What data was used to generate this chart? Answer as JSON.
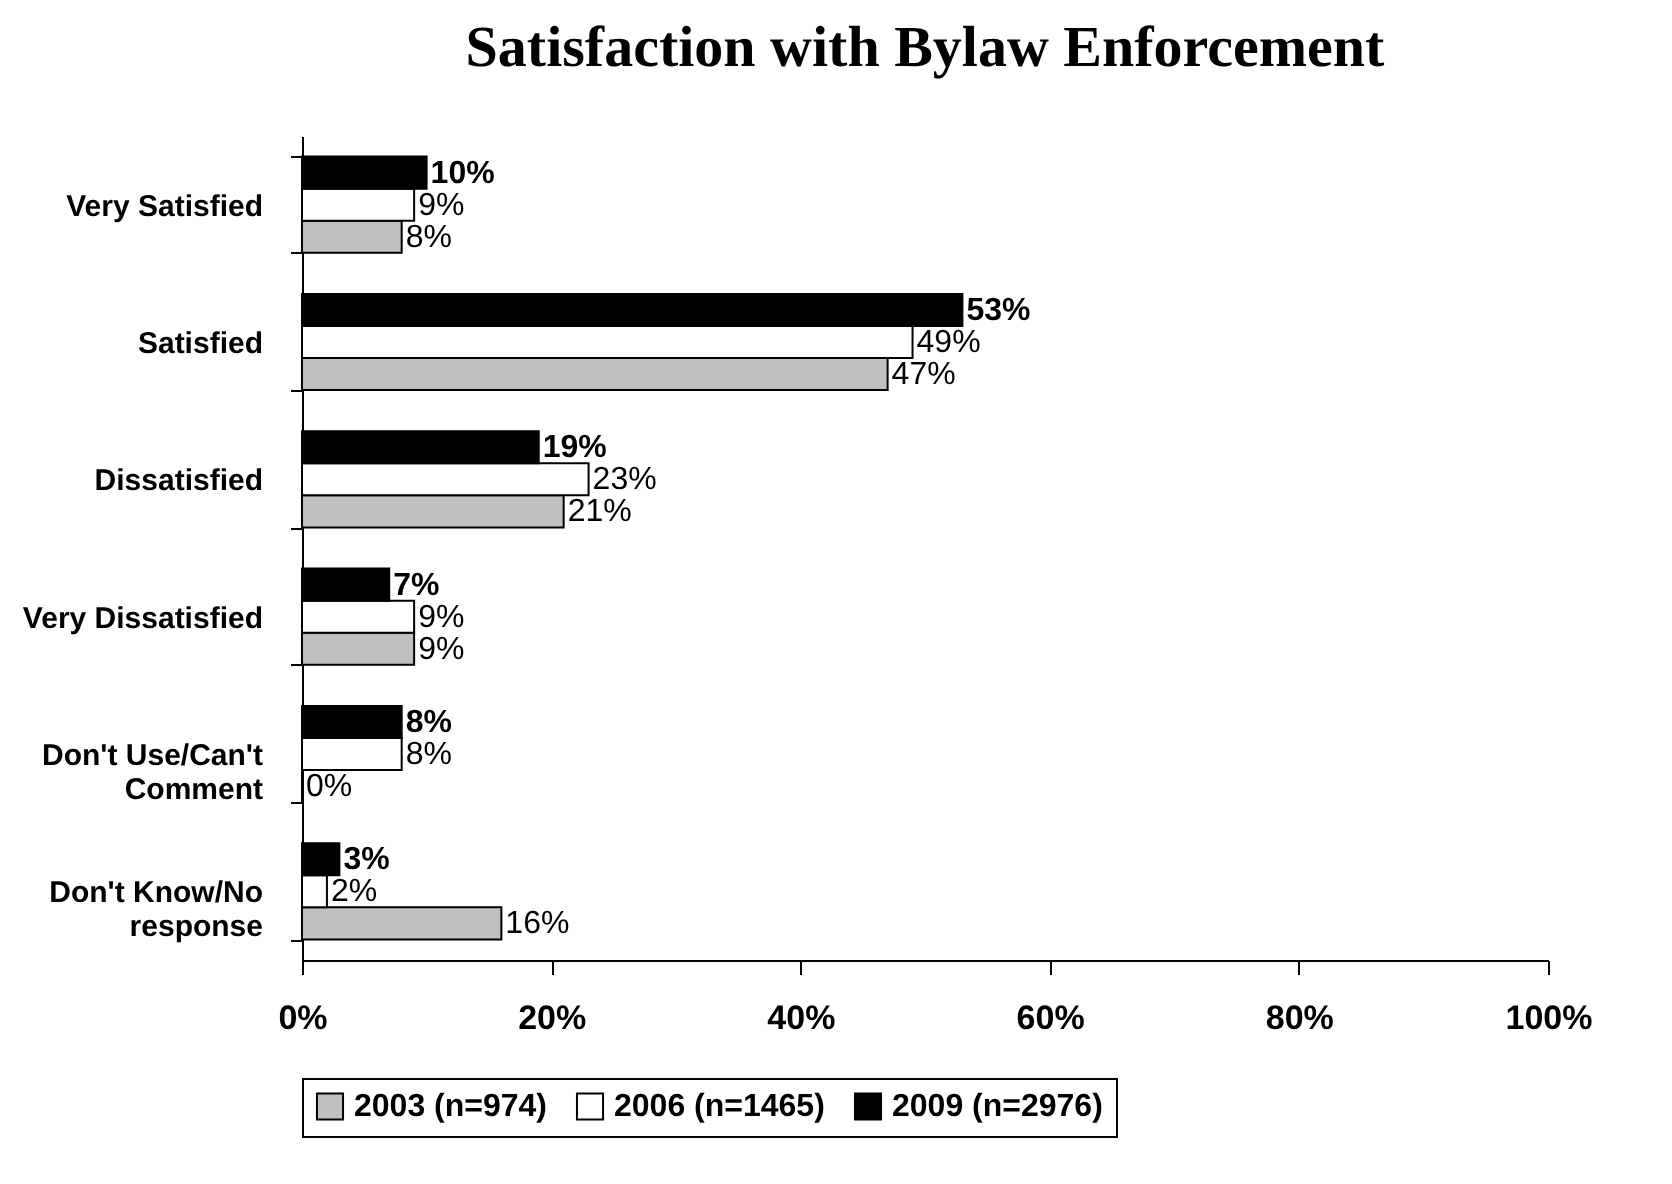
{
  "chart_data": {
    "type": "bar",
    "orientation": "horizontal",
    "title": "Satisfaction with Bylaw Enforcement",
    "categories": [
      "Very Satisfied",
      "Satisfied",
      "Dissatisfied",
      "Very Dissatisfied",
      "Don't Use/Can't Comment",
      "Don't Know/No response"
    ],
    "series": [
      {
        "name": "2003 (n=974)",
        "color": "#c0c0c0",
        "values": [
          8,
          47,
          21,
          9,
          0,
          16
        ],
        "value_labels": [
          "8%",
          "47%",
          "21%",
          "9%",
          "0%",
          "16%"
        ]
      },
      {
        "name": "2006 (n=1465)",
        "color": "#ffffff",
        "values": [
          9,
          49,
          23,
          9,
          8,
          2
        ],
        "value_labels": [
          "9%",
          "49%",
          "23%",
          "9%",
          "8%",
          "2%"
        ]
      },
      {
        "name": "2009 (n=2976)",
        "color": "#000000",
        "values": [
          10,
          53,
          19,
          7,
          8,
          3
        ],
        "value_labels": [
          "10%",
          "53%",
          "19%",
          "7%",
          "8%",
          "3%"
        ]
      }
    ],
    "xlim": [
      0,
      100
    ],
    "xticks": [
      {
        "value": 0,
        "label": "0%"
      },
      {
        "value": 20,
        "label": "20%"
      },
      {
        "value": 40,
        "label": "40%"
      },
      {
        "value": 60,
        "label": "60%"
      },
      {
        "value": 80,
        "label": "80%"
      },
      {
        "value": 100,
        "label": "100%"
      }
    ],
    "grid": false,
    "legend": "bottom"
  }
}
